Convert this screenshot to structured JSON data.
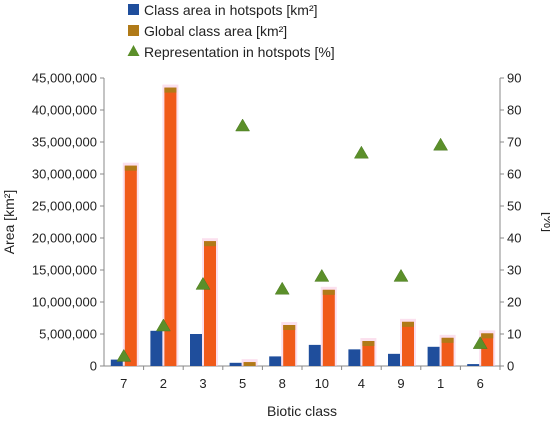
{
  "chart_data": {
    "type": "bar",
    "xlabel": "Biotic class",
    "ylabel": "Area [km²]",
    "y2label": "[%]",
    "ylim": [
      0,
      45000000
    ],
    "y2lim": [
      0,
      90
    ],
    "yticks": [
      "0",
      "5,000,000",
      "10,000,000",
      "15,000,000",
      "20,000,000",
      "25,000,000",
      "30,000,000",
      "35,000,000",
      "40,000,000",
      "45,000,000"
    ],
    "y2ticks": [
      "0",
      "10",
      "20",
      "30",
      "40",
      "50",
      "60",
      "70",
      "80",
      "90"
    ],
    "grid": false,
    "legend_position": "top",
    "categories": [
      "7",
      "2",
      "3",
      "5",
      "8",
      "10",
      "4",
      "9",
      "1",
      "6"
    ],
    "series": [
      {
        "name": "Class area in hotspots [km²]",
        "type": "bar",
        "axis": "left",
        "color": "#1f4e9c",
        "values": [
          1000000,
          5500000,
          5000000,
          500000,
          1500000,
          3300000,
          2600000,
          1900000,
          3000000,
          300000
        ]
      },
      {
        "name": "Global class area [km²]",
        "type": "bar",
        "axis": "left",
        "color": "#f05a1a",
        "values": [
          31300000,
          43500000,
          19500000,
          600000,
          6400000,
          11900000,
          3900000,
          6900000,
          4400000,
          5100000
        ]
      },
      {
        "name": "Representation in hotspots [%]",
        "type": "scatter",
        "axis": "right",
        "color": "#5b8f2a",
        "values": [
          3,
          12.5,
          25.5,
          75,
          24,
          28,
          66.5,
          28,
          69,
          7
        ]
      }
    ]
  }
}
